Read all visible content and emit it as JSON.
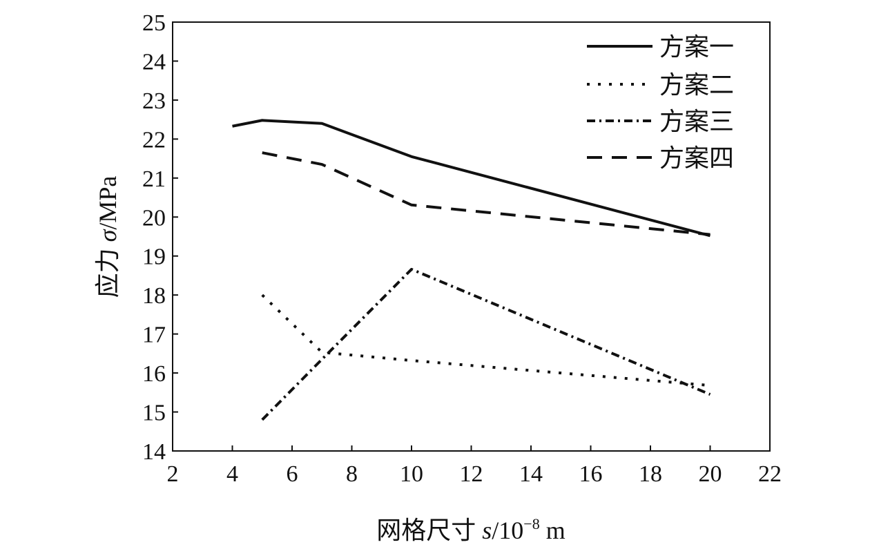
{
  "chart_data": {
    "type": "line",
    "title": "",
    "xlabel": "网格尺寸 s/10⁻⁸ m",
    "xlabel_parts": {
      "prefix": "网格尺寸 ",
      "var": "s",
      "suffix": "/10",
      "exp": "−8",
      "unit": " m"
    },
    "ylabel": "应力 σ/MPa",
    "ylabel_parts": {
      "prefix": "应力 ",
      "var": "σ",
      "suffix": "/MPa"
    },
    "xlim": [
      2,
      22
    ],
    "ylim": [
      14,
      25
    ],
    "xticks": [
      2,
      4,
      6,
      8,
      10,
      12,
      14,
      16,
      18,
      20,
      22
    ],
    "yticks": [
      14,
      15,
      16,
      17,
      18,
      19,
      20,
      21,
      22,
      23,
      24,
      25
    ],
    "grid": false,
    "legend_position": "top-right",
    "series": [
      {
        "name": "方案一",
        "style": "solid",
        "x": [
          4,
          5,
          7,
          10,
          20
        ],
        "y": [
          22.33,
          22.48,
          22.4,
          21.55,
          19.52
        ]
      },
      {
        "name": "方案二",
        "style": "dotted",
        "x": [
          5,
          7,
          10,
          20
        ],
        "y": [
          18.0,
          16.53,
          16.32,
          15.68
        ]
      },
      {
        "name": "方案三",
        "style": "dashdot",
        "x": [
          5,
          7,
          10,
          20
        ],
        "y": [
          14.8,
          16.35,
          18.66,
          15.45
        ]
      },
      {
        "name": "方案四",
        "style": "dashed",
        "x": [
          5,
          7,
          10,
          20
        ],
        "y": [
          21.65,
          21.35,
          20.31,
          19.55
        ]
      }
    ],
    "color": "#111111"
  }
}
